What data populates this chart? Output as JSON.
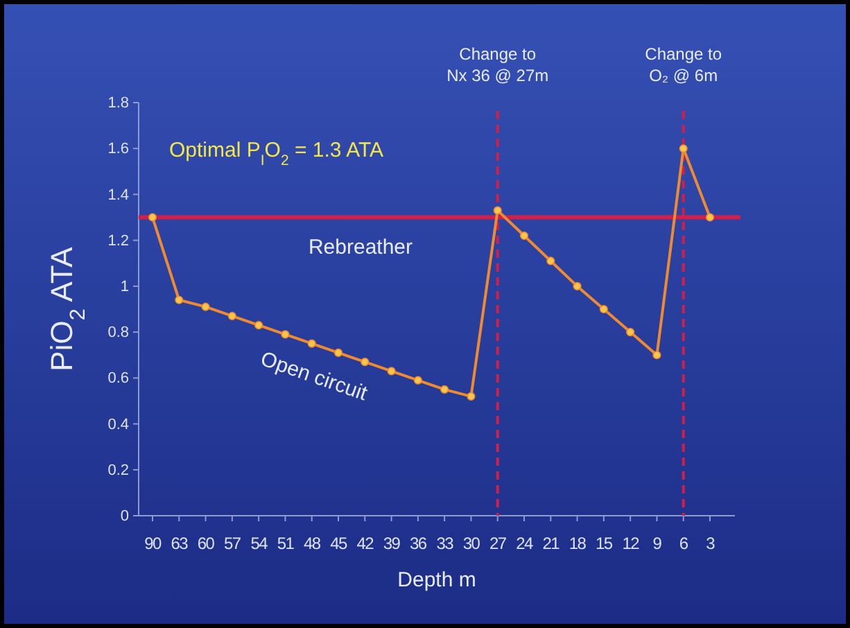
{
  "chart_data": {
    "type": "line",
    "xlabel": "Depth m",
    "ylabel": "PiO$_{2}$ ATA",
    "categories": [
      "90",
      "63",
      "60",
      "57",
      "54",
      "51",
      "48",
      "45",
      "42",
      "39",
      "36",
      "33",
      "30",
      "27",
      "24",
      "21",
      "18",
      "15",
      "12",
      "9",
      "6",
      "3"
    ],
    "series": [
      {
        "name": "Open circuit",
        "color": "#f08a30",
        "values": [
          1.3,
          0.94,
          0.91,
          0.87,
          0.83,
          0.79,
          0.75,
          0.71,
          0.67,
          0.63,
          0.59,
          0.55,
          0.52,
          1.33,
          1.22,
          1.11,
          1.0,
          0.9,
          0.8,
          0.7,
          1.6,
          1.3
        ]
      }
    ],
    "marker": "circle",
    "ylim": [
      0,
      1.8
    ],
    "yticks": [
      0,
      0.2,
      0.4,
      0.6,
      0.8,
      1,
      1.2,
      1.4,
      1.6,
      1.8
    ],
    "grid": false,
    "ref_lines": [
      {
        "axis": "y",
        "value": 1.3,
        "label": "Rebreather",
        "color": "#d0204a",
        "line_style": "solid"
      },
      {
        "axis": "x",
        "value": "27",
        "label": "Change to\nNx 36 @ 27m",
        "color": "#d0204a",
        "line_style": "dashed"
      },
      {
        "axis": "x",
        "value": "6",
        "label": "Change to\nO₂ @ 6m",
        "color": "#d0204a",
        "line_style": "dashed"
      }
    ],
    "annotations": [
      "Optimal P$_{I}$O$_{2}$ = 1.3 ATA"
    ]
  }
}
